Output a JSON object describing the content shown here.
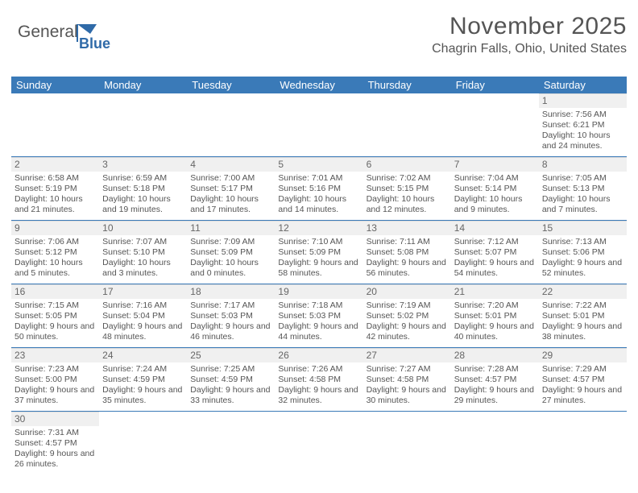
{
  "brand": {
    "part1": "General",
    "part2": "Blue"
  },
  "title": "November 2025",
  "location": "Chagrin Falls, Ohio, United States",
  "colors": {
    "header_bg": "#3a7ab8",
    "header_fg": "#ffffff",
    "text": "#555555",
    "daynum_bg": "#f0f0f0",
    "row_border": "#3a7ab8",
    "logo_gray": "#555555",
    "logo_blue": "#2f6aa8"
  },
  "day_names": [
    "Sunday",
    "Monday",
    "Tuesday",
    "Wednesday",
    "Thursday",
    "Friday",
    "Saturday"
  ],
  "weeks": [
    [
      null,
      null,
      null,
      null,
      null,
      null,
      {
        "n": "1",
        "sr": "7:56 AM",
        "ss": "6:21 PM",
        "dl": "10 hours and 24 minutes."
      }
    ],
    [
      {
        "n": "2",
        "sr": "6:58 AM",
        "ss": "5:19 PM",
        "dl": "10 hours and 21 minutes."
      },
      {
        "n": "3",
        "sr": "6:59 AM",
        "ss": "5:18 PM",
        "dl": "10 hours and 19 minutes."
      },
      {
        "n": "4",
        "sr": "7:00 AM",
        "ss": "5:17 PM",
        "dl": "10 hours and 17 minutes."
      },
      {
        "n": "5",
        "sr": "7:01 AM",
        "ss": "5:16 PM",
        "dl": "10 hours and 14 minutes."
      },
      {
        "n": "6",
        "sr": "7:02 AM",
        "ss": "5:15 PM",
        "dl": "10 hours and 12 minutes."
      },
      {
        "n": "7",
        "sr": "7:04 AM",
        "ss": "5:14 PM",
        "dl": "10 hours and 9 minutes."
      },
      {
        "n": "8",
        "sr": "7:05 AM",
        "ss": "5:13 PM",
        "dl": "10 hours and 7 minutes."
      }
    ],
    [
      {
        "n": "9",
        "sr": "7:06 AM",
        "ss": "5:12 PM",
        "dl": "10 hours and 5 minutes."
      },
      {
        "n": "10",
        "sr": "7:07 AM",
        "ss": "5:10 PM",
        "dl": "10 hours and 3 minutes."
      },
      {
        "n": "11",
        "sr": "7:09 AM",
        "ss": "5:09 PM",
        "dl": "10 hours and 0 minutes."
      },
      {
        "n": "12",
        "sr": "7:10 AM",
        "ss": "5:09 PM",
        "dl": "9 hours and 58 minutes."
      },
      {
        "n": "13",
        "sr": "7:11 AM",
        "ss": "5:08 PM",
        "dl": "9 hours and 56 minutes."
      },
      {
        "n": "14",
        "sr": "7:12 AM",
        "ss": "5:07 PM",
        "dl": "9 hours and 54 minutes."
      },
      {
        "n": "15",
        "sr": "7:13 AM",
        "ss": "5:06 PM",
        "dl": "9 hours and 52 minutes."
      }
    ],
    [
      {
        "n": "16",
        "sr": "7:15 AM",
        "ss": "5:05 PM",
        "dl": "9 hours and 50 minutes."
      },
      {
        "n": "17",
        "sr": "7:16 AM",
        "ss": "5:04 PM",
        "dl": "9 hours and 48 minutes."
      },
      {
        "n": "18",
        "sr": "7:17 AM",
        "ss": "5:03 PM",
        "dl": "9 hours and 46 minutes."
      },
      {
        "n": "19",
        "sr": "7:18 AM",
        "ss": "5:03 PM",
        "dl": "9 hours and 44 minutes."
      },
      {
        "n": "20",
        "sr": "7:19 AM",
        "ss": "5:02 PM",
        "dl": "9 hours and 42 minutes."
      },
      {
        "n": "21",
        "sr": "7:20 AM",
        "ss": "5:01 PM",
        "dl": "9 hours and 40 minutes."
      },
      {
        "n": "22",
        "sr": "7:22 AM",
        "ss": "5:01 PM",
        "dl": "9 hours and 38 minutes."
      }
    ],
    [
      {
        "n": "23",
        "sr": "7:23 AM",
        "ss": "5:00 PM",
        "dl": "9 hours and 37 minutes."
      },
      {
        "n": "24",
        "sr": "7:24 AM",
        "ss": "4:59 PM",
        "dl": "9 hours and 35 minutes."
      },
      {
        "n": "25",
        "sr": "7:25 AM",
        "ss": "4:59 PM",
        "dl": "9 hours and 33 minutes."
      },
      {
        "n": "26",
        "sr": "7:26 AM",
        "ss": "4:58 PM",
        "dl": "9 hours and 32 minutes."
      },
      {
        "n": "27",
        "sr": "7:27 AM",
        "ss": "4:58 PM",
        "dl": "9 hours and 30 minutes."
      },
      {
        "n": "28",
        "sr": "7:28 AM",
        "ss": "4:57 PM",
        "dl": "9 hours and 29 minutes."
      },
      {
        "n": "29",
        "sr": "7:29 AM",
        "ss": "4:57 PM",
        "dl": "9 hours and 27 minutes."
      }
    ],
    [
      {
        "n": "30",
        "sr": "7:31 AM",
        "ss": "4:57 PM",
        "dl": "9 hours and 26 minutes."
      },
      null,
      null,
      null,
      null,
      null,
      null
    ]
  ],
  "labels": {
    "sunrise": "Sunrise: ",
    "sunset": "Sunset: ",
    "daylight": "Daylight: "
  }
}
